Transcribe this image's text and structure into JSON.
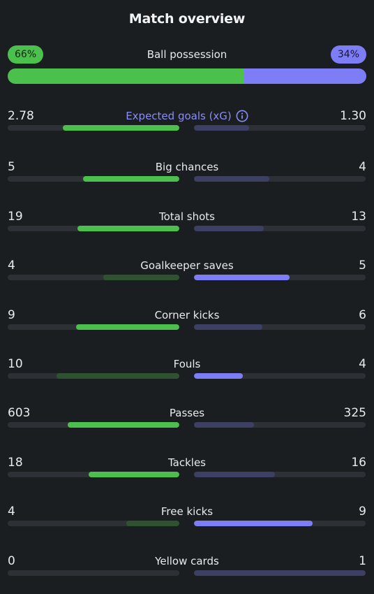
{
  "title": "Match overview",
  "possession": {
    "label": "Ball possession",
    "home": "66%",
    "away": "34%",
    "home_fraction": 0.66
  },
  "colors": {
    "home_strong": "#4bc04c",
    "home_weak": "#2f5230",
    "away_strong": "#7d7ef5",
    "away_weak": "#3d3f64",
    "track": "#2d3135",
    "accent": "#8a8cf7"
  },
  "stats": [
    {
      "label": "Expected goals (xG)",
      "home": "2.78",
      "away": "1.30",
      "home_fraction": 0.68,
      "away_fraction": 0.32,
      "leader": "home",
      "info": true
    },
    {
      "label": "Big chances",
      "home": "5",
      "away": "4",
      "home_fraction": 0.56,
      "away_fraction": 0.44,
      "leader": "home"
    },
    {
      "label": "Total shots",
      "home": "19",
      "away": "13",
      "home_fraction": 0.595,
      "away_fraction": 0.405,
      "leader": "home"
    },
    {
      "label": "Goalkeeper saves",
      "home": "4",
      "away": "5",
      "home_fraction": 0.445,
      "away_fraction": 0.555,
      "leader": "away"
    },
    {
      "label": "Corner kicks",
      "home": "9",
      "away": "6",
      "home_fraction": 0.6,
      "away_fraction": 0.4,
      "leader": "home"
    },
    {
      "label": "Fouls",
      "home": "10",
      "away": "4",
      "home_fraction": 0.715,
      "away_fraction": 0.285,
      "leader": "away"
    },
    {
      "label": "Passes",
      "home": "603",
      "away": "325",
      "home_fraction": 0.65,
      "away_fraction": 0.35,
      "leader": "home"
    },
    {
      "label": "Tackles",
      "home": "18",
      "away": "16",
      "home_fraction": 0.53,
      "away_fraction": 0.47,
      "leader": "home"
    },
    {
      "label": "Free kicks",
      "home": "4",
      "away": "9",
      "home_fraction": 0.31,
      "away_fraction": 0.69,
      "leader": "away"
    },
    {
      "label": "Yellow cards",
      "home": "0",
      "away": "1",
      "home_fraction": 0.0,
      "away_fraction": 1.0,
      "leader": "home"
    }
  ]
}
